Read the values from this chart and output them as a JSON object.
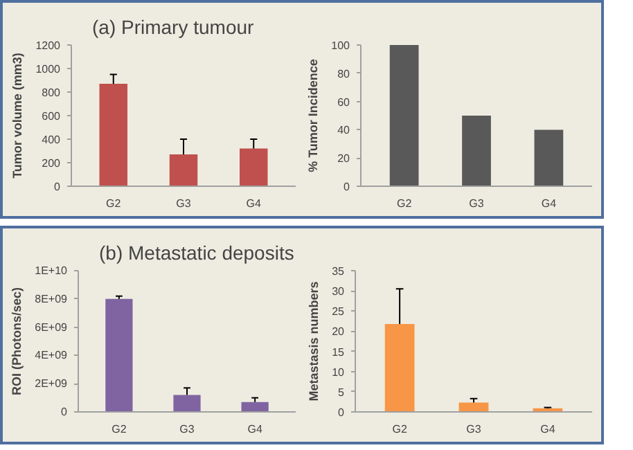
{
  "chart_data": [
    {
      "type": "bar",
      "title": "(a) Primary tumour",
      "ylabel": "Tumor volume (mm3)",
      "categories": [
        "G2",
        "G3",
        "G4"
      ],
      "values": [
        870,
        270,
        320
      ],
      "errors": [
        [
          870,
          950
        ],
        [
          270,
          400
        ],
        [
          320,
          400
        ]
      ],
      "color": "#c0504d",
      "ylim": [
        0,
        1200
      ],
      "yticks": [
        0,
        200,
        400,
        600,
        800,
        1000,
        1200
      ],
      "grid": false
    },
    {
      "type": "bar",
      "ylabel": "% Tumor Incidence",
      "categories": [
        "G2",
        "G3",
        "G4"
      ],
      "values": [
        100,
        50,
        40
      ],
      "color": "#595959",
      "ylim": [
        0,
        100
      ],
      "yticks": [
        0,
        20,
        40,
        60,
        80,
        100
      ],
      "grid": false
    },
    {
      "type": "bar",
      "title": "(b) Metastatic deposits",
      "ylabel": "ROI (Photons/sec)",
      "categories": [
        "G2",
        "G3",
        "G4"
      ],
      "values": [
        8000000000.0,
        1200000000.0,
        700000000.0
      ],
      "errors": [
        [
          8000000000.0,
          8200000000.0
        ],
        [
          1200000000.0,
          1700000000.0
        ],
        [
          700000000.0,
          1000000000.0
        ]
      ],
      "color": "#8064a2",
      "ylim": [
        0,
        10000000000.0
      ],
      "yticks": [
        {
          "value": 0,
          "label": "0"
        },
        {
          "value": 2000000000.0,
          "label": "2E+09"
        },
        {
          "value": 4000000000.0,
          "label": "4E+09"
        },
        {
          "value": 6000000000.0,
          "label": "6E+09"
        },
        {
          "value": 8000000000.0,
          "label": "8E+09"
        },
        {
          "value": 10000000000.0,
          "label": "1E+10"
        }
      ],
      "grid": false
    },
    {
      "type": "bar",
      "ylabel": "Metastasis numbers",
      "categories": [
        "G2",
        "G3",
        "G4"
      ],
      "values": [
        21.8,
        2.3,
        0.9
      ],
      "errors": [
        [
          21.8,
          30.5
        ],
        [
          2.3,
          3.3
        ],
        [
          0.9,
          1.1
        ]
      ],
      "color": "#f79646",
      "ylim": [
        0,
        35
      ],
      "yticks": [
        0,
        5,
        10,
        15,
        20,
        25,
        30,
        35
      ],
      "grid": false
    }
  ]
}
